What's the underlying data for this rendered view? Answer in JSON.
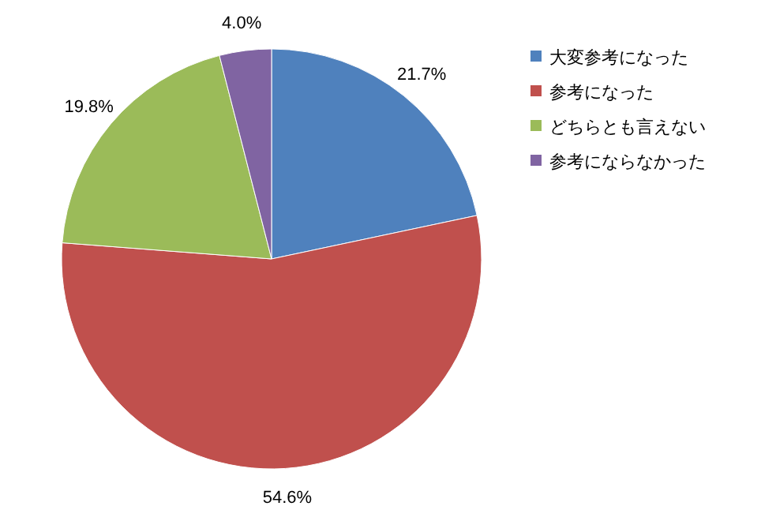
{
  "chart_data": {
    "type": "pie",
    "categories": [
      "大変参考になった",
      "参考になった",
      "どちらとも言えない",
      "参考にならなかった"
    ],
    "values": [
      21.7,
      54.6,
      19.8,
      4.0
    ],
    "value_labels": [
      "21.7%",
      "54.6%",
      "19.8%",
      "4.0%"
    ],
    "colors": [
      "#4f81bd",
      "#c0504d",
      "#9bbb59",
      "#8064a2"
    ],
    "legend": "right"
  }
}
